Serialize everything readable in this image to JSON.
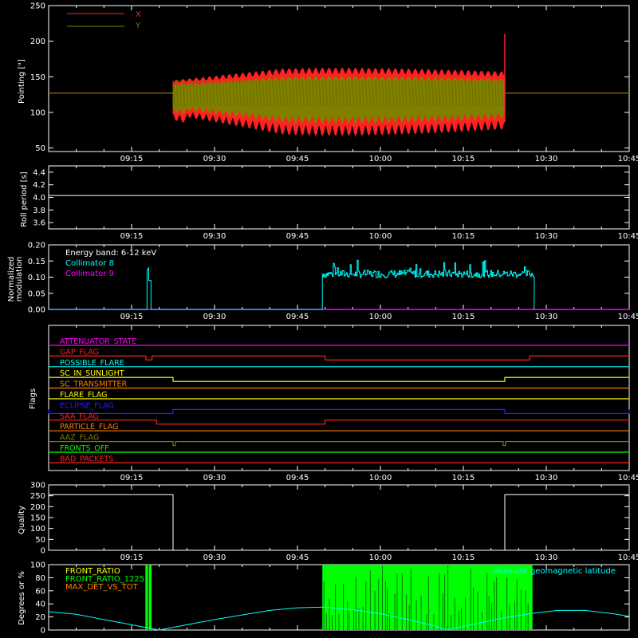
{
  "time_axis": {
    "start": "09:00",
    "end": "10:45",
    "ticks": [
      "09:15",
      "09:30",
      "09:45",
      "10:00",
      "10:15",
      "10:30",
      "10:45"
    ]
  },
  "chart_data": [
    {
      "id": "pointing",
      "type": "line",
      "ylabel": "Pointing [\"]",
      "ylim": [
        45,
        250
      ],
      "yticks": [
        50,
        100,
        150,
        200,
        250
      ],
      "legend_position": "top-left",
      "series": [
        {
          "name": "X",
          "color": "#ff2020",
          "note_segments": [
            {
              "from": "09:00",
              "to": "09:22.5",
              "value": 127
            },
            {
              "from": "09:22.5",
              "to": "10:22.5",
              "envelope_center": 127,
              "max_value": 162,
              "min_value": 68
            },
            {
              "from": "10:22.5",
              "to": "10:45",
              "value": 127
            }
          ],
          "spike": {
            "time": "10:22.5",
            "max_value": 210,
            "min_value": 86
          }
        },
        {
          "name": "Y",
          "color": "#808000",
          "note_segments": [
            {
              "from": "09:00",
              "to": "09:22.5",
              "value": 127
            },
            {
              "from": "09:22.5",
              "to": "10:22.5",
              "envelope_center": 127,
              "max_value": 150,
              "min_value": 85
            },
            {
              "from": "10:22.5",
              "to": "10:45",
              "value": 127
            }
          ]
        }
      ]
    },
    {
      "id": "roll",
      "type": "line",
      "ylabel": "Roll period [s]",
      "ylim": [
        3.5,
        4.5
      ],
      "yticks": [
        "3.6",
        "3.8",
        "4.0",
        "4.2",
        "4.4"
      ],
      "series": [
        {
          "color": "#ffffff",
          "value": 4.03,
          "from": "09:00",
          "to": "10:45"
        }
      ]
    },
    {
      "id": "modulation",
      "type": "line",
      "ylabel": [
        "Normalized",
        "modulation"
      ],
      "ylim": [
        0,
        0.2
      ],
      "yticks": [
        "0.00",
        "0.05",
        "0.10",
        "0.15",
        "0.20"
      ],
      "annotation": "Energy band: 6-12 keV",
      "series": [
        {
          "name": "Collimator 8",
          "color": "#00ffff",
          "segments": [
            {
              "from": "09:17.8",
              "to": "09:18.5",
              "value": 0.12
            },
            {
              "from": "09:49.5",
              "to": "10:27.8",
              "value": 0.11,
              "noise": 0.012
            }
          ]
        },
        {
          "name": "Collimator 9",
          "color": "#ff00ff",
          "value": 0.0
        }
      ]
    },
    {
      "id": "flags",
      "type": "line",
      "ylabel": "Flags",
      "series": [
        {
          "name": "ATTENUATOR_STATE",
          "color": "#ff00ff",
          "steps": []
        },
        {
          "name": "GAP_FLAG",
          "color": "#ff2020",
          "steps": [
            [
              "09:17.6",
              "09:18.7"
            ],
            [
              "09:50",
              "10:27"
            ]
          ]
        },
        {
          "name": "POSSIBLE_FLARE",
          "color": "#00ffff",
          "steps": []
        },
        {
          "name": "SC_IN_SUNLIGHT",
          "color": "#ffff00",
          "steps": [
            [
              "09:22.5",
              "10:22.5"
            ]
          ]
        },
        {
          "name": "SC_TRANSMITTER",
          "color": "#ff8000",
          "steps": []
        },
        {
          "name": "FLARE_FLAG",
          "color": "#ffff00",
          "steps": []
        },
        {
          "name": "ECLIPSE_FLAG",
          "color": "#2020ff",
          "steps": [
            [
              "09:00",
              "09:22.5"
            ],
            [
              "10:22.5",
              "10:45"
            ]
          ]
        },
        {
          "name": "SAA_FLAG",
          "color": "#ff2020",
          "steps": [
            [
              "09:19.5",
              "09:50"
            ]
          ]
        },
        {
          "name": "PARTICLE_FLAG",
          "color": "#ff8000",
          "steps": []
        },
        {
          "name": "AAZ_FLAG",
          "color": "#808000",
          "steps": [
            [
              "09:22.5",
              "09:22.9"
            ],
            [
              "10:22.2",
              "10:22.6"
            ]
          ]
        },
        {
          "name": "FRONTS_OFF",
          "color": "#00ff00",
          "steps": []
        },
        {
          "name": "BAD_PACKETS",
          "color": "#ff2020",
          "steps": []
        }
      ]
    },
    {
      "id": "quality",
      "type": "line",
      "ylabel": "Quality",
      "ylim": [
        0,
        300
      ],
      "yticks": [
        "0",
        "50",
        "100",
        "150",
        "200",
        "250",
        "300"
      ],
      "series": [
        {
          "color": "#ffffff",
          "segments": [
            {
              "from": "09:00",
              "to": "09:22.5",
              "value": 255
            },
            {
              "from": "09:22.5",
              "to": "10:22.5",
              "value": 0
            },
            {
              "from": "10:22.5",
              "to": "10:45",
              "value": 255
            }
          ]
        }
      ]
    },
    {
      "id": "geomag",
      "type": "line",
      "ylabel": "Degrees or %",
      "ylim": [
        0,
        100
      ],
      "yticks": [
        "0",
        "20",
        "40",
        "60",
        "80",
        "100"
      ],
      "series": [
        {
          "name": "FRONT_RATIO",
          "color": "#ffff00"
        },
        {
          "name": "FRONT_RATIO_1225",
          "color": "#00ff00",
          "bars": [
            {
              "from": "09:17.5",
              "to": "09:18.6"
            },
            {
              "from": "09:49.5",
              "to": "10:27.5"
            }
          ]
        },
        {
          "name": "MAX_DET_VS_TOT",
          "color": "#ff8000"
        },
        {
          "name": "Absolute geomagnetic latitude",
          "color": "#00ffff",
          "points": [
            [
              "09:00",
              28
            ],
            [
              "09:05",
              24
            ],
            [
              "09:10",
              16
            ],
            [
              "09:15",
              8
            ],
            [
              "09:20",
              0
            ],
            [
              "09:25",
              8
            ],
            [
              "09:30",
              16
            ],
            [
              "09:35",
              23
            ],
            [
              "09:40",
              30
            ],
            [
              "09:45",
              34
            ],
            [
              "09:50",
              35
            ],
            [
              "09:55",
              31
            ],
            [
              "10:00",
              25
            ],
            [
              "10:05",
              16
            ],
            [
              "10:10",
              6
            ],
            [
              "10:12",
              0
            ],
            [
              "10:17",
              9
            ],
            [
              "10:22",
              18
            ],
            [
              "10:27",
              25
            ],
            [
              "10:32",
              30
            ],
            [
              "10:37",
              30
            ],
            [
              "10:42",
              25
            ],
            [
              "10:45",
              21
            ]
          ]
        }
      ]
    }
  ]
}
